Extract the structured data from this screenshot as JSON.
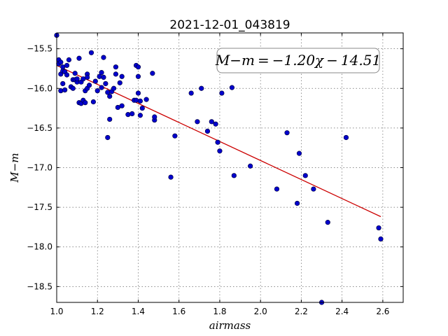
{
  "chart_data": {
    "type": "scatter",
    "title": "2021-12-01_043819",
    "xlabel": "airmass",
    "ylabel": "M−m",
    "xlim": [
      1.0,
      2.7
    ],
    "ylim": [
      -15.3,
      -18.7
    ],
    "y_inverted": true,
    "grid": true,
    "x_ticks": [
      1.0,
      1.2,
      1.4,
      1.6,
      1.8,
      2.0,
      2.2,
      2.4,
      2.6
    ],
    "x_tick_labels": [
      "1.0",
      "1.2",
      "1.4",
      "1.6",
      "1.8",
      "2.0",
      "2.2",
      "2.4",
      "2.6"
    ],
    "y_ticks": [
      -15.0,
      -15.5,
      -16.0,
      -16.5,
      -17.0,
      -17.5,
      -18.0,
      -18.5
    ],
    "y_tick_labels": [
      "−15.0",
      "−15.5",
      "−16.0",
      "−16.5",
      "−17.0",
      "−17.5",
      "−18.0",
      "−18.5"
    ],
    "annotation": "M−m = −1.20χ − 14.51",
    "fit": {
      "slope": -1.2,
      "intercept": -14.51,
      "x_range": [
        1.0,
        2.59
      ],
      "color": "#cc0000"
    },
    "series": [
      {
        "marker_color": "#0000cc",
        "points": [
          [
            1.0,
            -15.33
          ],
          [
            1.01,
            -15.64
          ],
          [
            1.01,
            -15.69
          ],
          [
            1.02,
            -15.67
          ],
          [
            1.03,
            -15.73
          ],
          [
            1.02,
            -15.82
          ],
          [
            1.02,
            -16.03
          ],
          [
            1.03,
            -15.78
          ],
          [
            1.04,
            -15.79
          ],
          [
            1.03,
            -15.94
          ],
          [
            1.04,
            -16.02
          ],
          [
            1.05,
            -15.71
          ],
          [
            1.05,
            -15.83
          ],
          [
            1.06,
            -15.64
          ],
          [
            1.07,
            -15.98
          ],
          [
            1.08,
            -16.0
          ],
          [
            1.08,
            -15.89
          ],
          [
            1.09,
            -15.81
          ],
          [
            1.09,
            -15.89
          ],
          [
            1.1,
            -15.92
          ],
          [
            1.1,
            -15.88
          ],
          [
            1.11,
            -15.62
          ],
          [
            1.11,
            -16.18
          ],
          [
            1.12,
            -16.19
          ],
          [
            1.12,
            -15.92
          ],
          [
            1.13,
            -16.15
          ],
          [
            1.13,
            -15.88
          ],
          [
            1.14,
            -16.03
          ],
          [
            1.14,
            -16.18
          ],
          [
            1.15,
            -15.82
          ],
          [
            1.15,
            -15.86
          ],
          [
            1.15,
            -16.0
          ],
          [
            1.16,
            -15.96
          ],
          [
            1.17,
            -15.55
          ],
          [
            1.18,
            -16.17
          ],
          [
            1.19,
            -15.91
          ],
          [
            1.2,
            -16.03
          ],
          [
            1.21,
            -15.85
          ],
          [
            1.22,
            -15.99
          ],
          [
            1.22,
            -15.8
          ],
          [
            1.23,
            -15.61
          ],
          [
            1.23,
            -15.86
          ],
          [
            1.24,
            -15.94
          ],
          [
            1.25,
            -16.62
          ],
          [
            1.25,
            -16.05
          ],
          [
            1.26,
            -16.1
          ],
          [
            1.26,
            -16.39
          ],
          [
            1.27,
            -16.04
          ],
          [
            1.28,
            -16.0
          ],
          [
            1.29,
            -15.73
          ],
          [
            1.29,
            -15.82
          ],
          [
            1.3,
            -16.24
          ],
          [
            1.31,
            -15.93
          ],
          [
            1.32,
            -16.22
          ],
          [
            1.32,
            -15.85
          ],
          [
            1.35,
            -16.33
          ],
          [
            1.37,
            -16.32
          ],
          [
            1.38,
            -16.15
          ],
          [
            1.39,
            -15.71
          ],
          [
            1.39,
            -16.15
          ],
          [
            1.4,
            -15.73
          ],
          [
            1.4,
            -15.85
          ],
          [
            1.4,
            -16.06
          ],
          [
            1.41,
            -16.34
          ],
          [
            1.41,
            -16.16
          ],
          [
            1.42,
            -16.25
          ],
          [
            1.44,
            -16.14
          ],
          [
            1.47,
            -15.81
          ],
          [
            1.48,
            -16.4
          ],
          [
            1.48,
            -16.36
          ],
          [
            1.56,
            -17.12
          ],
          [
            1.58,
            -16.6
          ],
          [
            1.66,
            -16.06
          ],
          [
            1.69,
            -16.42
          ],
          [
            1.71,
            -16.0
          ],
          [
            1.74,
            -16.54
          ],
          [
            1.76,
            -16.42
          ],
          [
            1.78,
            -16.45
          ],
          [
            1.79,
            -16.68
          ],
          [
            1.8,
            -16.79
          ],
          [
            1.81,
            -16.06
          ],
          [
            1.86,
            -15.99
          ],
          [
            1.87,
            -17.1
          ],
          [
            1.95,
            -16.98
          ],
          [
            2.08,
            -17.27
          ],
          [
            2.13,
            -16.56
          ],
          [
            2.18,
            -17.45
          ],
          [
            2.19,
            -16.82
          ],
          [
            2.22,
            -17.1
          ],
          [
            2.26,
            -17.27
          ],
          [
            2.3,
            -18.7
          ],
          [
            2.33,
            -17.69
          ],
          [
            2.42,
            -16.62
          ],
          [
            2.58,
            -17.76
          ],
          [
            2.59,
            -17.9
          ]
        ]
      }
    ]
  }
}
